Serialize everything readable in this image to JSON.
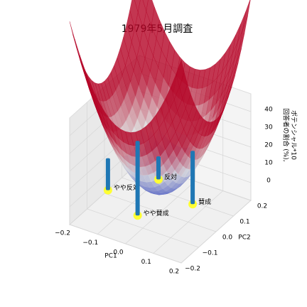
{
  "chart_data": {
    "type": "scatter3d",
    "title": "1979年5月調査",
    "categories": [
      "反対",
      "やや反対",
      "やや賛成",
      "賛成"
    ],
    "x": [
      -0.1,
      -0.2,
      -0.05,
      0.06
    ],
    "y": [
      0.15,
      0.02,
      -0.05,
      0.09
    ],
    "values": [
      3,
      8,
      32,
      20
    ],
    "color": "#1f77b4",
    "marker_color": "#ffff33",
    "xlabel": "PC1",
    "ylabel": "PC2",
    "zlabel": [
      "回答者の割合 (%),",
      "ポテンシャル*10"
    ],
    "xlim": [
      -0.2,
      0.2
    ],
    "ylim": [
      -0.2,
      0.2
    ],
    "zlim": [
      -10,
      50
    ],
    "xticks": [
      {
        "value": -0.2,
        "label": "−0.2"
      },
      {
        "value": -0.1,
        "label": "−0.1"
      },
      {
        "value": 0.0,
        "label": "0.0"
      },
      0.1,
      0.2
    ],
    "yticks": [
      {
        "value": -0.2,
        "label": "−0.2"
      },
      {
        "value": -0.1,
        "label": "−0.1"
      },
      {
        "value": 0.0,
        "label": "0.0"
      },
      0.1,
      0.2
    ],
    "zticks": [
      0,
      10,
      20,
      30,
      40
    ],
    "grid": true
  }
}
